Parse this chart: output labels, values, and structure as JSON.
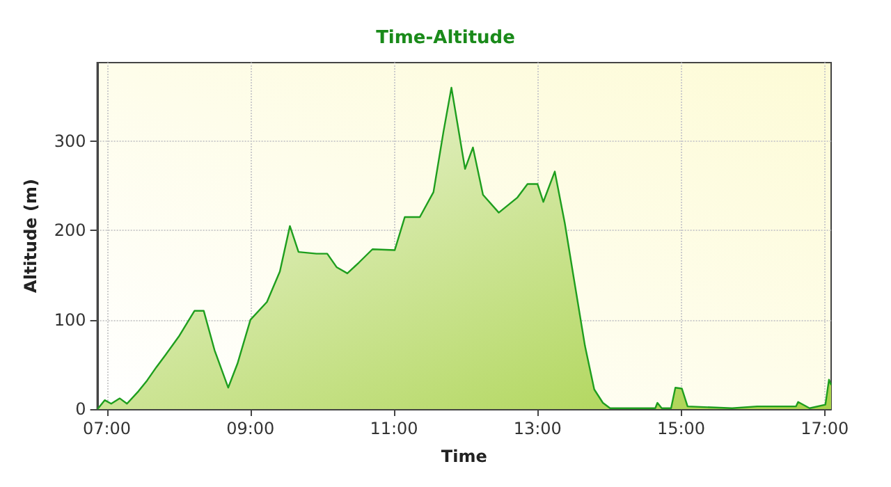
{
  "chart_data": {
    "type": "area",
    "title": "Time-Altitude",
    "xlabel": "Time",
    "ylabel": "Altitude (m)",
    "xlim": [
      6.865,
      17.09
    ],
    "ylim": [
      0,
      388
    ],
    "xticks": [
      {
        "value": 7,
        "label": "07:00"
      },
      {
        "value": 9,
        "label": "09:00"
      },
      {
        "value": 11,
        "label": "11:00"
      },
      {
        "value": 13,
        "label": "13:00"
      },
      {
        "value": 15,
        "label": "15:00"
      },
      {
        "value": 17,
        "label": "17:00"
      }
    ],
    "yticks": [
      0,
      100,
      200,
      300
    ],
    "grid": true,
    "marker": "none",
    "line_style": "solid",
    "series": [
      {
        "color": "#1e9e1e",
        "x": [
          6.87,
          6.97,
          7.06,
          7.18,
          7.28,
          7.44,
          7.56,
          7.69,
          7.82,
          8.0,
          8.22,
          8.35,
          8.5,
          8.69,
          8.82,
          9.0,
          9.23,
          9.41,
          9.55,
          9.67,
          9.92,
          10.07,
          10.2,
          10.35,
          10.51,
          10.7,
          11.01,
          11.15,
          11.36,
          11.55,
          11.69,
          11.8,
          11.99,
          12.1,
          12.24,
          12.46,
          12.72,
          12.86,
          13.0,
          13.08,
          13.24,
          13.38,
          13.5,
          13.66,
          13.79,
          13.91,
          14.01,
          14.64,
          14.67,
          14.73,
          14.86,
          14.92,
          15.01,
          15.09,
          15.71,
          16.06,
          16.6,
          16.63,
          16.79,
          17.01,
          17.06,
          17.09
        ],
        "values": [
          0,
          10,
          6,
          12,
          6,
          20,
          32,
          47,
          61,
          81,
          110,
          110,
          66,
          24,
          51,
          100,
          120,
          154,
          205,
          176,
          174,
          174,
          159,
          152,
          164,
          179,
          178,
          215,
          215,
          243,
          311,
          360,
          269,
          293,
          240,
          220,
          237,
          252,
          252,
          232,
          266,
          208,
          149,
          71,
          22,
          7,
          1,
          1,
          7,
          1,
          1,
          24,
          23,
          3,
          1,
          3,
          3,
          8,
          1,
          5,
          33,
          27
        ]
      }
    ]
  }
}
